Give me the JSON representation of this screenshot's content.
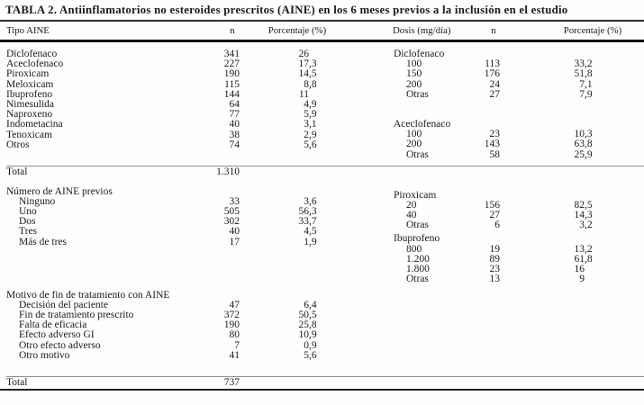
{
  "title": "TABLA 2. Antiinflamatorios no esteroides prescritos (AINE) en los 6 meses previos a la inclusión en el estudio",
  "columns": {
    "tipo": "Tipo AINE",
    "n_left": "n",
    "pct_left": "Porcentaje (%)",
    "dosis": "Dosis (mg/día)",
    "n_right": "n",
    "pct_right": "Porcentaje (%)"
  },
  "left_sections": [
    {
      "header": "",
      "indent": false,
      "rows": [
        {
          "label": "Diclofenaco",
          "n": "341",
          "pct": "26"
        },
        {
          "label": "Aceclofenaco",
          "n": "227",
          "pct": "17,3"
        },
        {
          "label": "Piroxicam",
          "n": "190",
          "pct": "14,5"
        },
        {
          "label": "Meloxicam",
          "n": "115",
          "pct": "8,8"
        },
        {
          "label": "Ibuprofeno",
          "n": "144",
          "pct": "11"
        },
        {
          "label": "Nimesulida",
          "n": "64",
          "pct": "4,9"
        },
        {
          "label": "Naproxeno",
          "n": "77",
          "pct": "5,9"
        },
        {
          "label": "Indometacina",
          "n": "40",
          "pct": "3,1"
        },
        {
          "label": "Tenoxicam",
          "n": "38",
          "pct": "2,9"
        },
        {
          "label": "Otros",
          "n": "74",
          "pct": "5,6"
        }
      ],
      "total": {
        "label": "Total",
        "n": "1.310",
        "pct": ""
      }
    },
    {
      "header": "Número de AINE previos",
      "indent": true,
      "rows": [
        {
          "label": "Ninguno",
          "n": "33",
          "pct": "3,6"
        },
        {
          "label": "Uno",
          "n": "505",
          "pct": "56,3"
        },
        {
          "label": "Dos",
          "n": "302",
          "pct": "33,7"
        },
        {
          "label": "Tres",
          "n": "40",
          "pct": "4,5"
        },
        {
          "label": "Más de tres",
          "n": "17",
          "pct": "1,9"
        }
      ],
      "total": null
    },
    {
      "header": "Motivo de fin de tratamiento con AINE",
      "indent": true,
      "rows": [
        {
          "label": "Decisión del paciente",
          "n": "47",
          "pct": "6,4"
        },
        {
          "label": "Fin de tratamiento prescrito",
          "n": "372",
          "pct": "50,5"
        },
        {
          "label": "Falta de eficacia",
          "n": "190",
          "pct": "25,8"
        },
        {
          "label": "Efecto adverso GI",
          "n": "80",
          "pct": "10,9"
        },
        {
          "label": "Otro efecto adverso",
          "n": "7",
          "pct": "0,9"
        },
        {
          "label": "Otro motivo",
          "n": "41",
          "pct": "5,6"
        }
      ],
      "total": {
        "label": "Total",
        "n": "737",
        "pct": ""
      }
    }
  ],
  "right_sections": [
    {
      "header": "Diclofenaco",
      "rows": [
        {
          "label": "100",
          "n": "113",
          "pct": "33,2"
        },
        {
          "label": "150",
          "n": "176",
          "pct": "51,8"
        },
        {
          "label": "200",
          "n": "24",
          "pct": "7,1"
        },
        {
          "label": "Otras",
          "n": "27",
          "pct": "7,9"
        }
      ]
    },
    {
      "header": "Aceclofenaco",
      "rows": [
        {
          "label": "100",
          "n": "23",
          "pct": "10,3"
        },
        {
          "label": "200",
          "n": "143",
          "pct": "63,8"
        },
        {
          "label": "Otras",
          "n": "58",
          "pct": "25,9"
        }
      ]
    },
    {
      "header": "Piroxicam",
      "rows": [
        {
          "label": "20",
          "n": "156",
          "pct": "82,5"
        },
        {
          "label": "40",
          "n": "27",
          "pct": "14,3"
        },
        {
          "label": "Otras",
          "n": "6",
          "pct": "3,2"
        }
      ]
    },
    {
      "header": "Ibuprofeno",
      "rows": [
        {
          "label": "800",
          "n": "19",
          "pct": "13,2"
        },
        {
          "label": "1.200",
          "n": "89",
          "pct": "61,8"
        },
        {
          "label": "1.800",
          "n": "23",
          "pct": "16"
        },
        {
          "label": "Otras",
          "n": "13",
          "pct": "9"
        }
      ]
    }
  ]
}
